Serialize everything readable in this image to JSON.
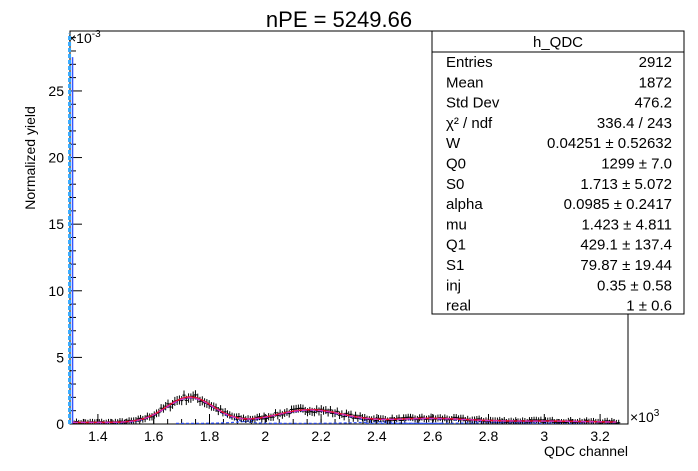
{
  "chart_data": {
    "type": "histogram",
    "title": "nPE = 5249.66",
    "xlabel": "QDC channel",
    "ylabel": "Normalized yield",
    "x_multiplier": "×10^3",
    "y_multiplier": "×10^-3",
    "xlim": [
      1.3,
      3.3
    ],
    "ylim": [
      0,
      29.5
    ],
    "x_ticks": [
      "1.4",
      "1.6",
      "1.8",
      "2",
      "2.2",
      "2.4",
      "2.6",
      "2.8",
      "3",
      "3.2"
    ],
    "y_ticks": [
      "0",
      "5",
      "10",
      "15",
      "20",
      "25"
    ],
    "stats_box": {
      "name": "h_QDC",
      "rows": [
        {
          "label": "Entries",
          "value": "2912"
        },
        {
          "label": "Mean",
          "value": "1872"
        },
        {
          "label": "Std Dev",
          "value": "476.2"
        },
        {
          "label": "χ² / ndf",
          "value": "336.4 / 243"
        },
        {
          "label": "W",
          "value": "0.04251 ± 0.52632"
        },
        {
          "label": "Q0",
          "value": "1299 ± 7.0"
        },
        {
          "label": "S0",
          "value": "1.713 ± 5.072"
        },
        {
          "label": "alpha",
          "value": "0.0985 ± 0.2417"
        },
        {
          "label": "mu",
          "value": "1.423 ± 4.811"
        },
        {
          "label": "Q1",
          "value": "429.1 ± 137.4"
        },
        {
          "label": "S1",
          "value": "79.87 ± 19.44"
        },
        {
          "label": "inj",
          "value": "0.35 ± 0.58"
        },
        {
          "label": "real",
          "value": "1 ± 0.6"
        }
      ]
    },
    "pedestal": {
      "x": 1.302,
      "y": 29.3
    },
    "peaks": [
      {
        "center": 1.73,
        "height": 1.9,
        "sigma": 0.085
      },
      {
        "center": 2.16,
        "height": 0.95,
        "sigma": 0.12
      },
      {
        "center": 2.59,
        "height": 0.3,
        "sigma": 0.14
      },
      {
        "center": 3.0,
        "height": 0.1,
        "sigma": 0.16
      }
    ],
    "series": [
      {
        "name": "data",
        "color": "#000000"
      },
      {
        "name": "fit",
        "color": "#e8112d"
      },
      {
        "name": "components",
        "color": "#3355ff"
      },
      {
        "name": "pedestal",
        "color": "#33aaff"
      }
    ]
  }
}
